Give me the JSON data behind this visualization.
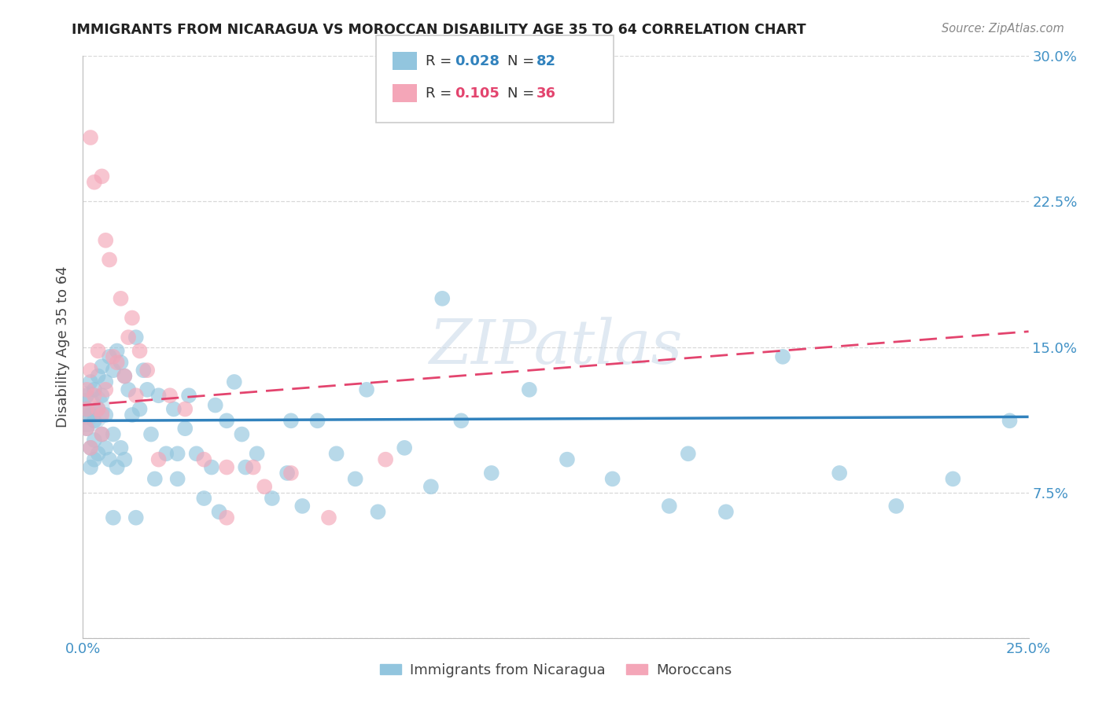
{
  "title": "IMMIGRANTS FROM NICARAGUA VS MOROCCAN DISABILITY AGE 35 TO 64 CORRELATION CHART",
  "source": "Source: ZipAtlas.com",
  "xlabel_label": "Immigrants from Nicaragua",
  "ylabel_label": "Disability Age 35 to 64",
  "xlim": [
    0.0,
    0.25
  ],
  "ylim": [
    0.0,
    0.3
  ],
  "xticks": [
    0.0,
    0.05,
    0.1,
    0.15,
    0.2,
    0.25
  ],
  "yticks": [
    0.0,
    0.075,
    0.15,
    0.225,
    0.3
  ],
  "blue_color": "#92c5de",
  "pink_color": "#f4a6b8",
  "line_blue": "#3182bd",
  "line_pink": "#e3446e",
  "watermark": "ZIPatlas",
  "blue_scatter_x": [
    0.001,
    0.001,
    0.001,
    0.002,
    0.002,
    0.002,
    0.002,
    0.003,
    0.003,
    0.003,
    0.003,
    0.004,
    0.004,
    0.004,
    0.005,
    0.005,
    0.005,
    0.006,
    0.006,
    0.006,
    0.007,
    0.007,
    0.008,
    0.008,
    0.009,
    0.009,
    0.01,
    0.01,
    0.011,
    0.011,
    0.012,
    0.013,
    0.014,
    0.015,
    0.016,
    0.017,
    0.018,
    0.019,
    0.02,
    0.022,
    0.024,
    0.025,
    0.027,
    0.028,
    0.03,
    0.032,
    0.034,
    0.036,
    0.038,
    0.04,
    0.043,
    0.046,
    0.05,
    0.054,
    0.058,
    0.062,
    0.067,
    0.072,
    0.078,
    0.085,
    0.092,
    0.1,
    0.108,
    0.118,
    0.128,
    0.14,
    0.155,
    0.17,
    0.185,
    0.2,
    0.215,
    0.23,
    0.245,
    0.095,
    0.055,
    0.075,
    0.035,
    0.16,
    0.042,
    0.025,
    0.014,
    0.008
  ],
  "blue_scatter_y": [
    0.125,
    0.118,
    0.108,
    0.132,
    0.115,
    0.098,
    0.088,
    0.128,
    0.112,
    0.102,
    0.092,
    0.135,
    0.118,
    0.095,
    0.14,
    0.125,
    0.105,
    0.132,
    0.115,
    0.098,
    0.145,
    0.092,
    0.138,
    0.105,
    0.148,
    0.088,
    0.142,
    0.098,
    0.135,
    0.092,
    0.128,
    0.115,
    0.155,
    0.118,
    0.138,
    0.128,
    0.105,
    0.082,
    0.125,
    0.095,
    0.118,
    0.082,
    0.108,
    0.125,
    0.095,
    0.072,
    0.088,
    0.065,
    0.112,
    0.132,
    0.088,
    0.095,
    0.072,
    0.085,
    0.068,
    0.112,
    0.095,
    0.082,
    0.065,
    0.098,
    0.078,
    0.112,
    0.085,
    0.128,
    0.092,
    0.082,
    0.068,
    0.065,
    0.145,
    0.085,
    0.068,
    0.082,
    0.112,
    0.175,
    0.112,
    0.128,
    0.12,
    0.095,
    0.105,
    0.095,
    0.062,
    0.062
  ],
  "pink_scatter_x": [
    0.001,
    0.001,
    0.001,
    0.002,
    0.002,
    0.002,
    0.003,
    0.003,
    0.004,
    0.004,
    0.005,
    0.005,
    0.006,
    0.006,
    0.007,
    0.008,
    0.009,
    0.01,
    0.011,
    0.012,
    0.013,
    0.014,
    0.015,
    0.017,
    0.02,
    0.023,
    0.027,
    0.032,
    0.038,
    0.045,
    0.055,
    0.065,
    0.08,
    0.005,
    0.038,
    0.048
  ],
  "pink_scatter_y": [
    0.128,
    0.118,
    0.108,
    0.138,
    0.098,
    0.258,
    0.125,
    0.235,
    0.148,
    0.118,
    0.238,
    0.115,
    0.205,
    0.128,
    0.195,
    0.145,
    0.142,
    0.175,
    0.135,
    0.155,
    0.165,
    0.125,
    0.148,
    0.138,
    0.092,
    0.125,
    0.118,
    0.092,
    0.088,
    0.088,
    0.085,
    0.062,
    0.092,
    0.105,
    0.062,
    0.078
  ],
  "blue_line_x": [
    0.0,
    0.25
  ],
  "blue_line_y": [
    0.112,
    0.114
  ],
  "pink_line_x": [
    0.0,
    0.25
  ],
  "pink_line_y": [
    0.12,
    0.158
  ],
  "background_color": "#ffffff",
  "grid_color": "#d8d8d8",
  "tick_label_color": "#4292c6",
  "title_color": "#222222",
  "legend_r1": "0.028",
  "legend_n1": "82",
  "legend_r2": "0.105",
  "legend_n2": "36"
}
